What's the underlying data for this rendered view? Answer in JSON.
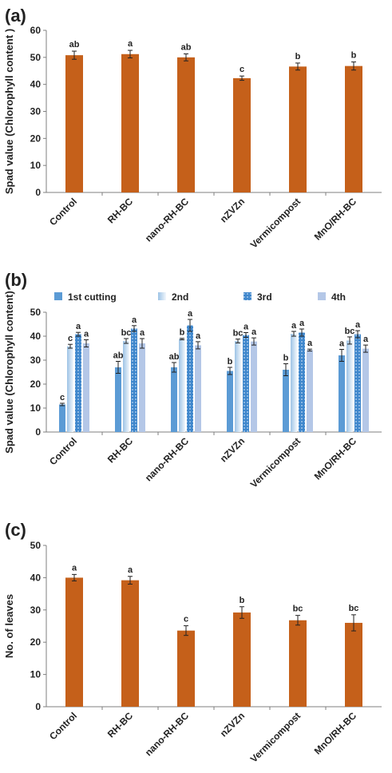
{
  "panels": [
    {
      "id": "a",
      "label": "(a)"
    },
    {
      "id": "b",
      "label": "(b)"
    },
    {
      "id": "c",
      "label": "(c)"
    }
  ],
  "colors": {
    "orange": "#C5601A",
    "blue1": "#5B9BD5",
    "blue2": "#DDEBF7",
    "blue3": "#3F87CC",
    "blue4": "#B4C7E7",
    "axis": "#7F7F7F",
    "text": "#222222"
  },
  "chart_data": [
    {
      "type": "bar",
      "panel": "a",
      "categories": [
        "Control",
        "RH-BC",
        "nano-RH-BC",
        "nZVZn",
        "Vermicompost",
        "MnO/RH-BC"
      ],
      "values": [
        50.8,
        51.2,
        50.0,
        42.3,
        46.6,
        46.8
      ],
      "errors": [
        1.5,
        1.4,
        1.3,
        0.8,
        1.3,
        1.5
      ],
      "significance": [
        "ab",
        "a",
        "ab",
        "c",
        "b",
        "b"
      ],
      "ylabel": "Spad value (Chlorophyll content )",
      "ylim": [
        0,
        60
      ],
      "yticks": [
        0,
        10,
        20,
        30,
        40,
        50,
        60
      ],
      "color": "#C5601A"
    },
    {
      "type": "bar",
      "panel": "b",
      "categories": [
        "Control",
        "RH-BC",
        "nano-RH-BC",
        "nZVZn",
        "Vermicompost",
        "MnO/RH-BC"
      ],
      "series": [
        {
          "name": "1st cutting",
          "values": [
            11.5,
            27.0,
            27.0,
            25.5,
            26.0,
            32.0
          ],
          "errors": [
            0.5,
            2.5,
            2.0,
            1.5,
            2.5,
            2.5
          ],
          "significance": [
            "c",
            "ab",
            "ab",
            "b",
            "b",
            "a"
          ],
          "color": "#5B9BD5"
        },
        {
          "name": "2nd",
          "values": [
            35.8,
            38.0,
            38.8,
            38.0,
            41.0,
            38.2
          ],
          "errors": [
            0.8,
            1.0,
            0.3,
            0.8,
            1.0,
            1.5
          ],
          "significance": [
            "c",
            "bc",
            "b",
            "bc",
            "a",
            "bc"
          ],
          "color": "#DDEBF7"
        },
        {
          "name": "3rd",
          "values": [
            40.8,
            43.2,
            44.5,
            40.5,
            41.5,
            40.8
          ],
          "errors": [
            0.8,
            1.2,
            2.5,
            1.0,
            1.5,
            1.5
          ],
          "significance": [
            "a",
            "a",
            "a",
            "a",
            "a",
            "a"
          ],
          "color": "#3F87CC"
        },
        {
          "name": "4th",
          "values": [
            37.0,
            37.0,
            36.2,
            37.8,
            34.2,
            34.8
          ],
          "errors": [
            1.5,
            2.0,
            1.5,
            1.5,
            0.4,
            1.5
          ],
          "significance": [
            "a",
            "a",
            "a",
            "a",
            "a",
            "a"
          ],
          "color": "#B4C7E7"
        }
      ],
      "ylabel": "Spad value (Chlorophyll content)",
      "ylim": [
        0,
        50
      ],
      "yticks": [
        0,
        10,
        20,
        30,
        40,
        50
      ],
      "legend_position": "top"
    },
    {
      "type": "bar",
      "panel": "c",
      "categories": [
        "Control",
        "RH-BC",
        "nano-RH-BC",
        "nZVZn",
        "Vermicompost",
        "MnO/RH-BC"
      ],
      "values": [
        40.0,
        39.2,
        23.6,
        29.2,
        26.8,
        26.0
      ],
      "errors": [
        1.0,
        1.2,
        1.5,
        1.8,
        1.5,
        2.5
      ],
      "significance": [
        "a",
        "a",
        "c",
        "b",
        "bc",
        "bc"
      ],
      "ylabel": "No. of leaves",
      "ylim": [
        0,
        50
      ],
      "yticks": [
        0,
        10,
        20,
        30,
        40,
        50
      ],
      "color": "#C5601A"
    }
  ]
}
